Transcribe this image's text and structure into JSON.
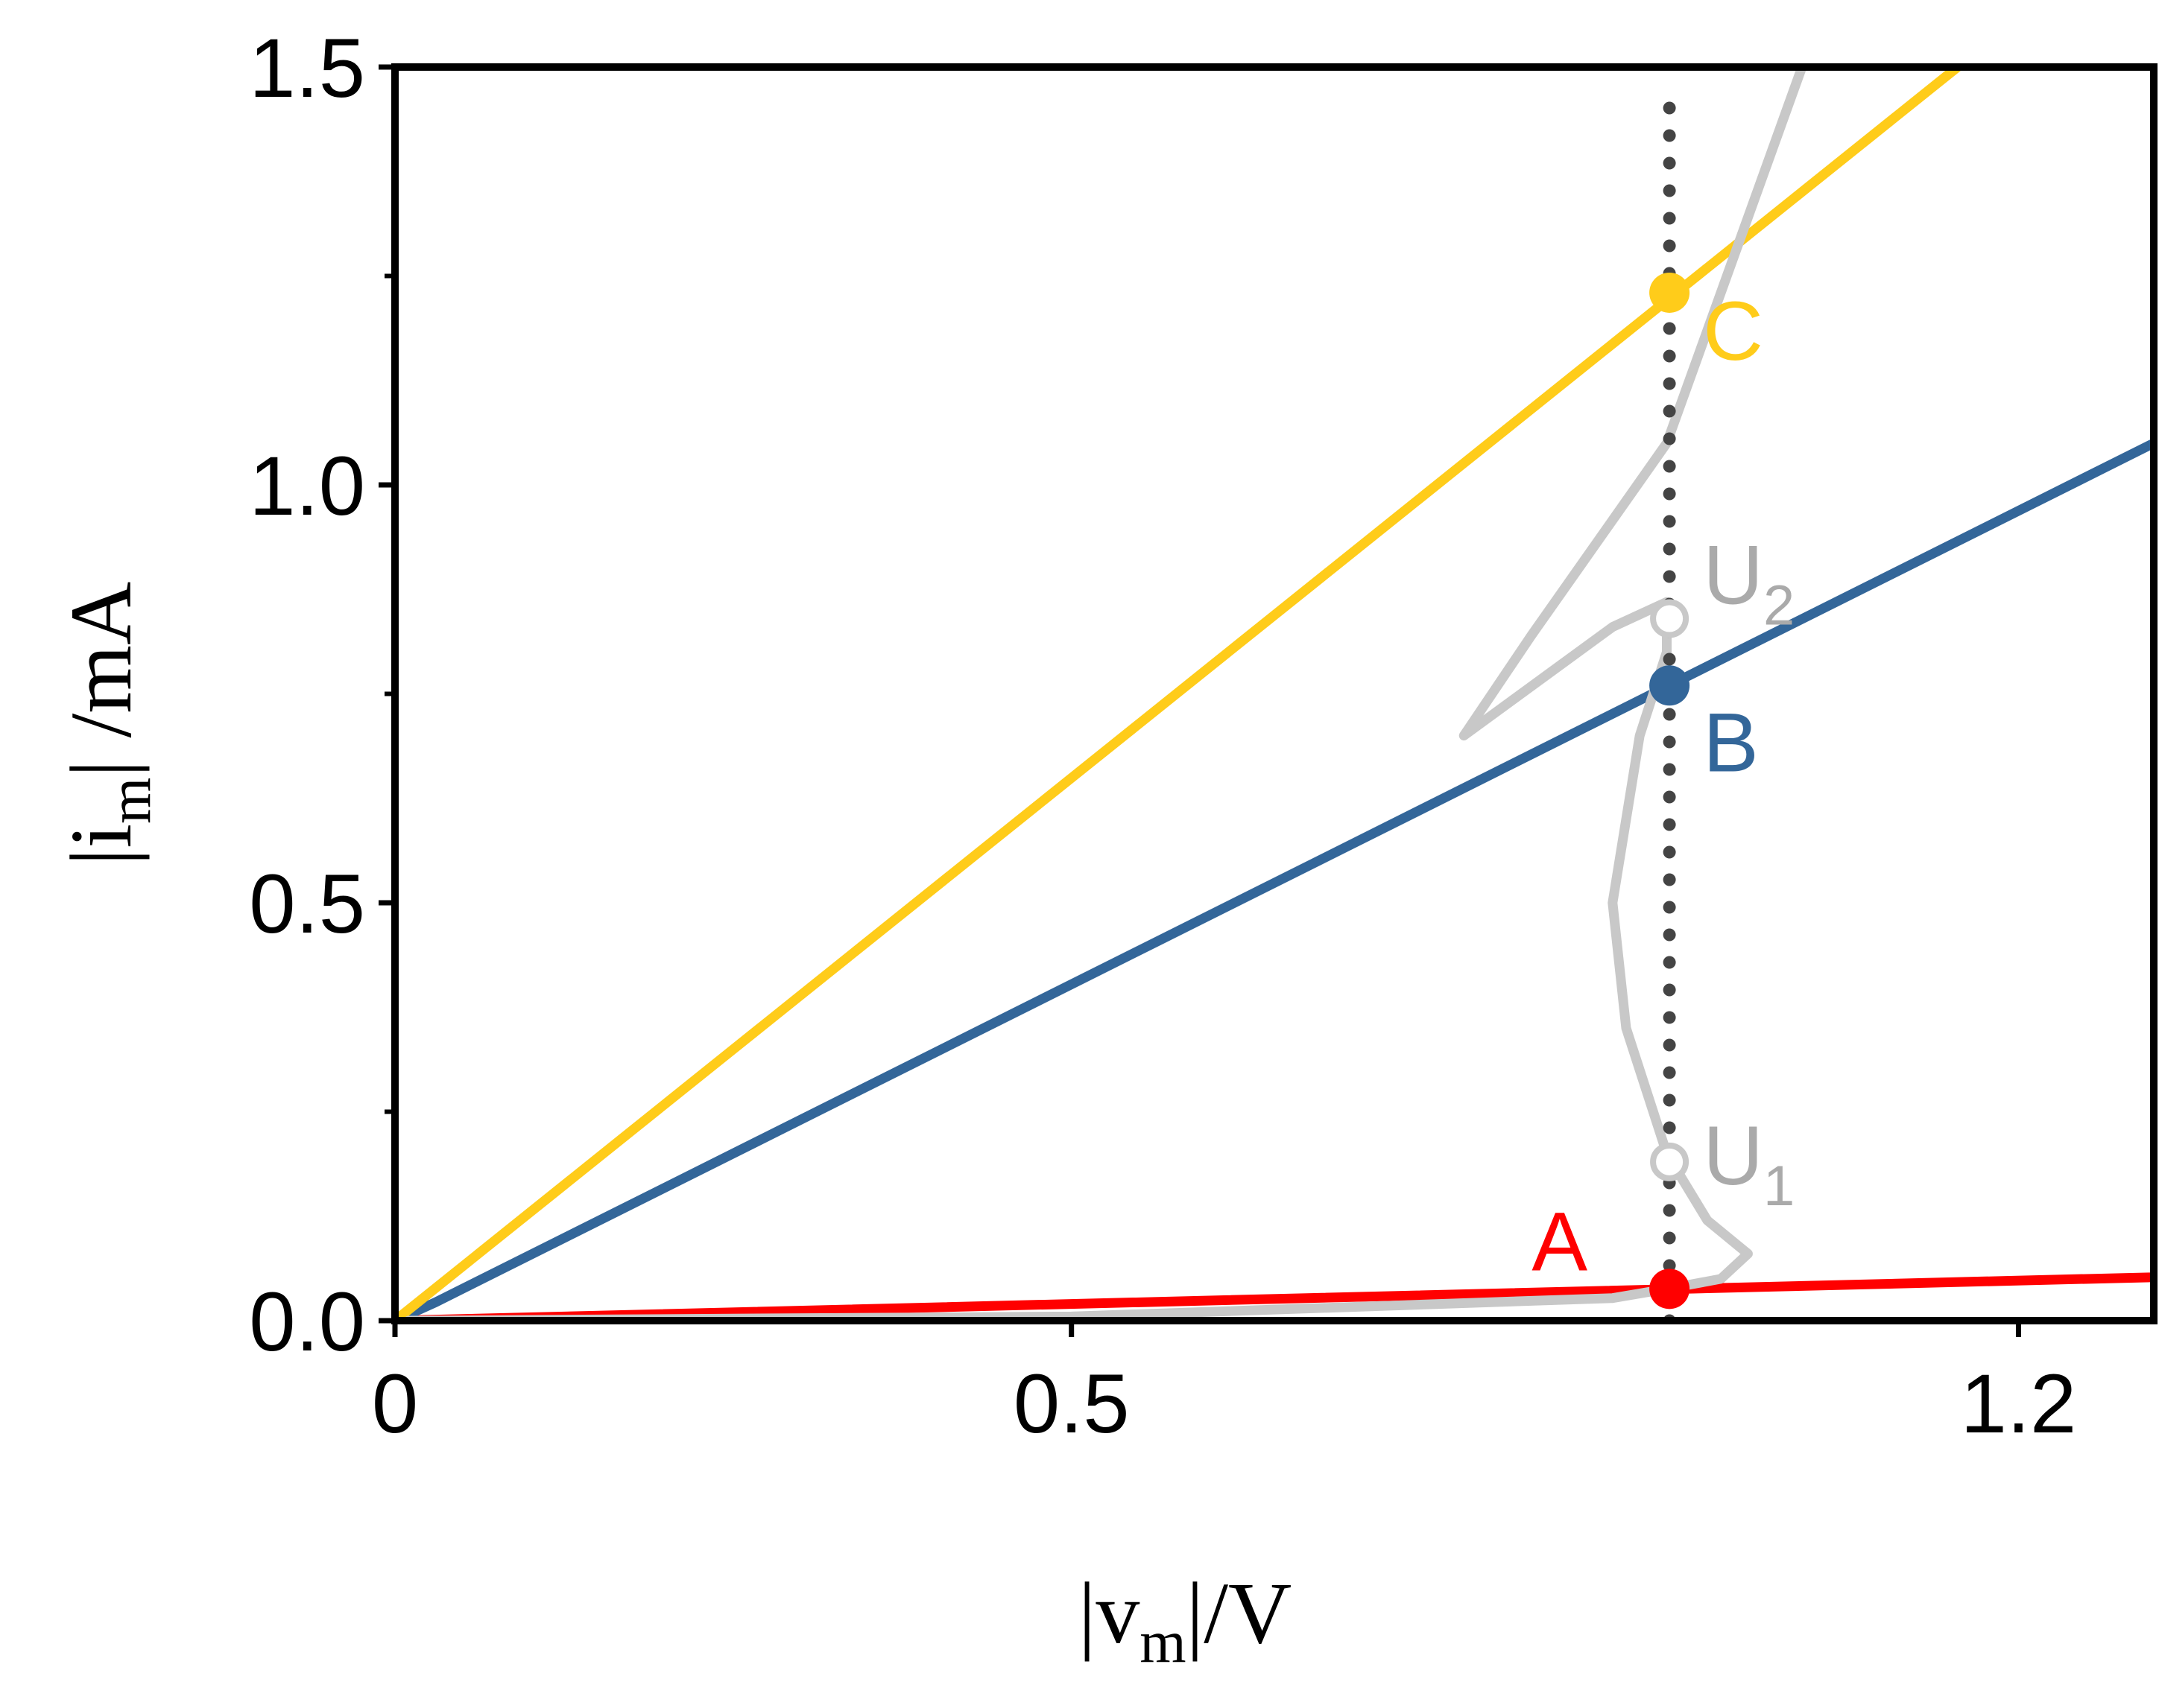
{
  "chart_data": {
    "type": "line",
    "xlabel": {
      "base": "|v",
      "sub": "m",
      "rest": "|/V"
    },
    "ylabel": {
      "base": "|i",
      "sub": "m",
      "rest": "| /mA"
    },
    "x_tick_labels": [
      {
        "v": 0,
        "label": "0"
      },
      {
        "v": 0.5,
        "label": "0.5"
      },
      {
        "v": 1.2,
        "label": "1.2"
      }
    ],
    "y_tick_labels": [
      {
        "v": 0,
        "label": "0.0"
      },
      {
        "v": 0.5,
        "label": "0.5"
      },
      {
        "v": 1.0,
        "label": "1.0"
      },
      {
        "v": 1.5,
        "label": "1.5"
      }
    ],
    "y_minor_ticks": [
      0.25,
      0.75,
      1.25
    ],
    "xlim": [
      0,
      1.3
    ],
    "ylim": [
      0,
      1.5
    ],
    "series": [
      {
        "id": "load-line-a",
        "color": "#ff0000",
        "points": [
          [
            0,
            0
          ],
          [
            1.3,
            0.052
          ]
        ]
      },
      {
        "id": "load-line-b",
        "color": "#336699",
        "points": [
          [
            0,
            0
          ],
          [
            0.03,
            0.022
          ],
          [
            1.3,
            1.05
          ]
        ]
      },
      {
        "id": "load-line-c",
        "color": "#ffcc1a",
        "points": [
          [
            0,
            0
          ],
          [
            1.155,
            1.5
          ]
        ]
      },
      {
        "id": "device-curve",
        "color": "#c8c8c8",
        "points": [
          [
            0.01,
            0.0
          ],
          [
            0.5,
            0.005
          ],
          [
            0.9,
            0.027
          ],
          [
            0.94,
            0.038
          ],
          [
            0.98,
            0.05
          ],
          [
            1.0,
            0.08
          ],
          [
            0.97,
            0.12
          ],
          [
            0.94,
            0.2
          ],
          [
            0.91,
            0.35
          ],
          [
            0.9,
            0.5
          ],
          [
            0.92,
            0.7
          ],
          [
            0.94,
            0.8
          ],
          [
            0.94,
            0.86
          ],
          [
            0.9,
            0.83
          ],
          [
            0.79,
            0.7
          ],
          [
            0.84,
            0.82
          ],
          [
            0.94,
            1.05
          ],
          [
            1.04,
            1.5
          ]
        ]
      },
      {
        "id": "guide-line",
        "color": "#444444",
        "dotted": true,
        "points": [
          [
            0.942,
            0.0
          ],
          [
            0.942,
            1.46
          ]
        ]
      }
    ],
    "points": [
      {
        "label": "A",
        "x": 0.942,
        "y": 0.038,
        "color": "#ff0000",
        "filled": true,
        "label_dx": -110,
        "label_dy": -55
      },
      {
        "label": "B",
        "x": 0.942,
        "y": 0.76,
        "color": "#336699",
        "filled": true,
        "label_dx": 45,
        "label_dy": 85
      },
      {
        "label": "C",
        "x": 0.942,
        "y": 1.23,
        "color": "#ffcc1a",
        "filled": true,
        "label_dx": 45,
        "label_dy": 60
      },
      {
        "label": "U",
        "sub": "2",
        "x": 0.942,
        "y": 0.84,
        "color": "#aaaaaa",
        "filled": false,
        "label_dx": 45,
        "label_dy": -50
      },
      {
        "label": "U",
        "sub": "1",
        "x": 0.942,
        "y": 0.19,
        "color": "#aaaaaa",
        "filled": false,
        "label_dx": 45,
        "label_dy": 0
      }
    ]
  }
}
